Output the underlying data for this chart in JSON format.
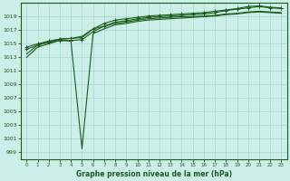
{
  "bg_color": "#cceee8",
  "grid_color": "#aad8cc",
  "line_color": "#1a5c1a",
  "title": "Graphe pression niveau de la mer (hPa)",
  "ylim": [
    998,
    1021
  ],
  "xlim": [
    -0.5,
    23.5
  ],
  "yticks": [
    999,
    1001,
    1003,
    1005,
    1007,
    1009,
    1011,
    1013,
    1015,
    1017,
    1019
  ],
  "xticks": [
    0,
    1,
    2,
    3,
    4,
    5,
    6,
    7,
    8,
    9,
    10,
    11,
    12,
    13,
    14,
    15,
    16,
    17,
    18,
    19,
    20,
    21,
    22,
    23
  ],
  "series_with_markers": [
    [
      1014.5,
      1015.0,
      1015.4,
      1015.7,
      1015.8,
      1015.9,
      1017.2,
      1018.0,
      1018.5,
      1018.7,
      1018.9,
      1019.1,
      1019.2,
      1019.3,
      1019.4,
      1019.5,
      1019.6,
      1019.8,
      1020.0,
      1020.2,
      1020.5,
      1020.6,
      1020.4,
      1020.3
    ],
    [
      1014.2,
      1014.8,
      1015.2,
      1015.5,
      1015.5,
      1015.6,
      1016.8,
      1017.6,
      1018.2,
      1018.4,
      1018.7,
      1018.9,
      1019.0,
      1019.1,
      1019.2,
      1019.3,
      1019.4,
      1019.6,
      1019.9,
      1020.1,
      1020.3,
      1020.5,
      1020.3,
      1020.2
    ]
  ],
  "series_no_markers": [
    [
      1013.5,
      1014.8,
      1015.3,
      1015.7,
      1015.8,
      1016.1,
      1017.2,
      1017.6,
      1018.0,
      1018.2,
      1018.5,
      1018.7,
      1018.8,
      1018.9,
      1019.0,
      1019.0,
      1019.1,
      1019.2,
      1019.4,
      1019.5,
      1019.7,
      1019.8,
      1019.7,
      1019.6
    ],
    [
      1013.0,
      1014.5,
      1015.0,
      1015.5,
      1015.4,
      999.5,
      1016.5,
      1017.2,
      1017.8,
      1018.0,
      1018.3,
      1018.5,
      1018.6,
      1018.7,
      1018.8,
      1018.9,
      1019.0,
      1019.1,
      1019.3,
      1019.4,
      1019.6,
      1019.7,
      1019.6,
      1019.5
    ]
  ]
}
